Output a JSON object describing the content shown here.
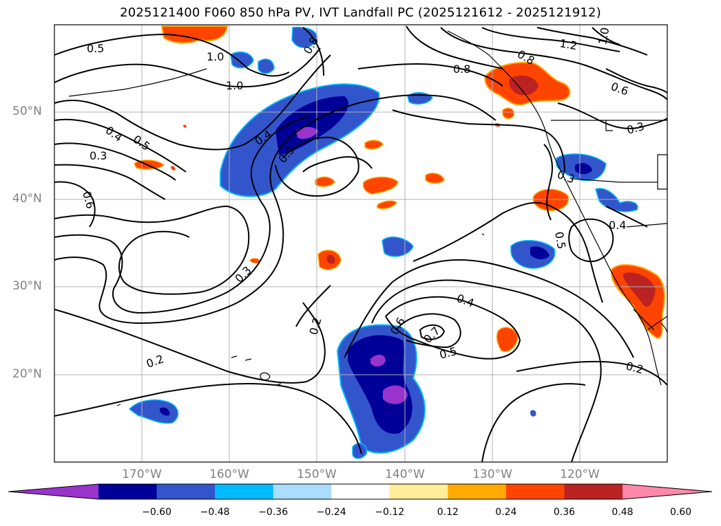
{
  "title": "2025121400 F060 850 hPa PV, IVT Landfall PC (2025121612 - 2025121912)",
  "latitude_labels": [
    "50°N",
    "40°N",
    "30°N",
    "20°N"
  ],
  "longitude_labels": [
    "170°W",
    "160°W",
    "150°W",
    "140°W",
    "130°W",
    "120°W"
  ],
  "contour_labels": [
    "0.5",
    "0.4",
    "0.5",
    "0.3",
    "0.6",
    "1.0",
    "1.0",
    "0.8",
    "0.4",
    "0.3",
    "0.3",
    "0.2",
    "0.2",
    "0.4",
    "0.6",
    "0.7",
    "0.5",
    "0.2",
    "1.2",
    "1.0",
    "0.8",
    "0.6",
    "0.3",
    "0.3",
    "0.4",
    "0.5",
    "0.8"
  ],
  "colorbar": {
    "ticks": [
      "−0.60",
      "−0.48",
      "−0.36",
      "−0.24",
      "−0.12",
      "0.12",
      "0.24",
      "0.36",
      "0.48",
      "0.60"
    ],
    "colors": [
      "#9933cc",
      "#000099",
      "#3355cc",
      "#00bbff",
      "#aaddff",
      "#ffffff",
      "#ffee99",
      "#ffaa00",
      "#ff4400",
      "#bb2222",
      "#ff88aa"
    ]
  },
  "legend_colors": {
    "coast": "#000000",
    "grid": "#b0b0b0"
  }
}
